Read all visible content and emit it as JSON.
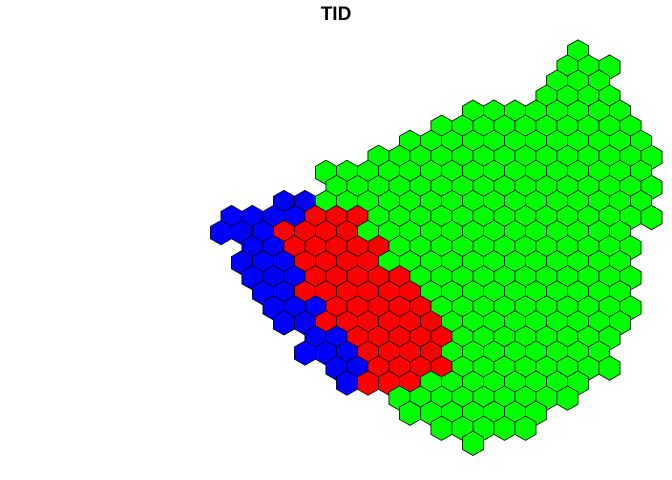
{
  "chart_data": {
    "type": "heatmap",
    "title": "TID",
    "xlabel": "",
    "ylabel": "",
    "grid": false,
    "legend": "none",
    "cell_shape": "hexagon",
    "categories": [
      "blue",
      "red",
      "green"
    ],
    "colors": {
      "blue": "#0000ff",
      "red": "#ff0000",
      "green": "#00ff00",
      "border": "#000000"
    },
    "rows": [
      {
        "row": 0,
        "cols": [
          {
            "from": 22,
            "to": 22,
            "cls": "green"
          }
        ]
      },
      {
        "row": 1,
        "cols": [
          {
            "from": 21,
            "to": 23,
            "cls": "green"
          }
        ]
      },
      {
        "row": 2,
        "cols": [
          {
            "from": 21,
            "to": 23,
            "cls": "green"
          }
        ]
      },
      {
        "row": 3,
        "cols": [
          {
            "from": 20,
            "to": 23,
            "cls": "green"
          }
        ]
      },
      {
        "row": 4,
        "cols": [
          {
            "from": 17,
            "to": 24,
            "cls": "green"
          }
        ]
      },
      {
        "row": 5,
        "cols": [
          {
            "from": 15,
            "to": 24,
            "cls": "green"
          }
        ]
      },
      {
        "row": 6,
        "cols": [
          {
            "from": 14,
            "to": 25,
            "cls": "green"
          }
        ]
      },
      {
        "row": 7,
        "cols": [
          {
            "from": 12,
            "to": 25,
            "cls": "green"
          }
        ]
      },
      {
        "row": 8,
        "cols": [
          {
            "from": 10,
            "to": 25,
            "cls": "green"
          }
        ]
      },
      {
        "row": 9,
        "cols": [
          {
            "from": 10,
            "to": 25,
            "cls": "green"
          }
        ]
      },
      {
        "row": 10,
        "cols": [
          {
            "from": 8,
            "to": 9,
            "cls": "blue"
          },
          {
            "from": 10,
            "to": 25,
            "cls": "green"
          }
        ]
      },
      {
        "row": 11,
        "cols": [
          {
            "from": 5,
            "to": 8,
            "cls": "blue"
          },
          {
            "from": 9,
            "to": 11,
            "cls": "red"
          },
          {
            "from": 12,
            "to": 25,
            "cls": "green"
          }
        ]
      },
      {
        "row": 12,
        "cols": [
          {
            "from": 5,
            "to": 7,
            "cls": "blue"
          },
          {
            "from": 8,
            "to": 11,
            "cls": "red"
          },
          {
            "from": 12,
            "to": 24,
            "cls": "green"
          }
        ]
      },
      {
        "row": 13,
        "cols": [
          {
            "from": 6,
            "to": 7,
            "cls": "blue"
          },
          {
            "from": 8,
            "to": 12,
            "cls": "red"
          },
          {
            "from": 13,
            "to": 24,
            "cls": "green"
          }
        ]
      },
      {
        "row": 14,
        "cols": [
          {
            "from": 6,
            "to": 8,
            "cls": "blue"
          },
          {
            "from": 9,
            "to": 12,
            "cls": "red"
          },
          {
            "from": 13,
            "to": 24,
            "cls": "green"
          }
        ]
      },
      {
        "row": 15,
        "cols": [
          {
            "from": 6,
            "to": 8,
            "cls": "blue"
          },
          {
            "from": 9,
            "to": 13,
            "cls": "red"
          },
          {
            "from": 14,
            "to": 24,
            "cls": "green"
          }
        ]
      },
      {
        "row": 16,
        "cols": [
          {
            "from": 7,
            "to": 8,
            "cls": "blue"
          },
          {
            "from": 9,
            "to": 14,
            "cls": "red"
          },
          {
            "from": 15,
            "to": 24,
            "cls": "green"
          }
        ]
      },
      {
        "row": 17,
        "cols": [
          {
            "from": 7,
            "to": 9,
            "cls": "blue"
          },
          {
            "from": 10,
            "to": 14,
            "cls": "red"
          },
          {
            "from": 15,
            "to": 24,
            "cls": "green"
          }
        ]
      },
      {
        "row": 18,
        "cols": [
          {
            "from": 8,
            "to": 9,
            "cls": "blue"
          },
          {
            "from": 10,
            "to": 15,
            "cls": "red"
          },
          {
            "from": 16,
            "to": 24,
            "cls": "green"
          }
        ]
      },
      {
        "row": 19,
        "cols": [
          {
            "from": 9,
            "to": 10,
            "cls": "blue"
          },
          {
            "from": 11,
            "to": 15,
            "cls": "red"
          },
          {
            "from": 16,
            "to": 23,
            "cls": "green"
          }
        ]
      },
      {
        "row": 20,
        "cols": [
          {
            "from": 9,
            "to": 11,
            "cls": "blue"
          },
          {
            "from": 12,
            "to": 15,
            "cls": "red"
          },
          {
            "from": 16,
            "to": 23,
            "cls": "green"
          }
        ]
      },
      {
        "row": 21,
        "cols": [
          {
            "from": 10,
            "to": 11,
            "cls": "blue"
          },
          {
            "from": 12,
            "to": 15,
            "cls": "red"
          },
          {
            "from": 16,
            "to": 23,
            "cls": "green"
          }
        ]
      },
      {
        "row": 22,
        "cols": [
          {
            "from": 11,
            "to": 11,
            "cls": "blue"
          },
          {
            "from": 12,
            "to": 14,
            "cls": "red"
          },
          {
            "from": 15,
            "to": 22,
            "cls": "green"
          }
        ]
      },
      {
        "row": 23,
        "cols": [
          {
            "from": 13,
            "to": 21,
            "cls": "green"
          }
        ]
      },
      {
        "row": 24,
        "cols": [
          {
            "from": 14,
            "to": 20,
            "cls": "green"
          }
        ]
      },
      {
        "row": 25,
        "cols": [
          {
            "from": 15,
            "to": 19,
            "cls": "green"
          }
        ]
      },
      {
        "row": 26,
        "cols": [
          {
            "from": 17,
            "to": 17,
            "cls": "green"
          }
        ]
      }
    ]
  }
}
